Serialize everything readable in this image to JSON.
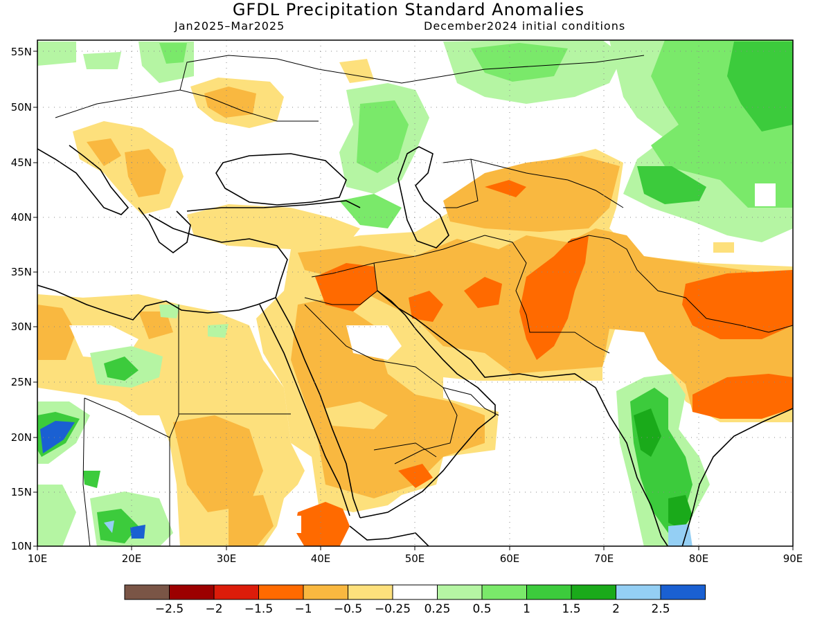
{
  "title": "GFDL Precipitation Standard Anomalies",
  "subtitle_left": "Jan2025–Mar2025",
  "subtitle_right": "December2024 initial conditions",
  "map": {
    "lat_labels": [
      "55N",
      "50N",
      "45N",
      "40N",
      "35N",
      "30N",
      "25N",
      "20N",
      "15N",
      "10N"
    ],
    "lon_labels": [
      "10E",
      "20E",
      "30E",
      "40E",
      "50E",
      "60E",
      "70E",
      "80E",
      "90E"
    ],
    "grid_lines": "dotted"
  },
  "colorbar": {
    "colors": [
      "#7a5546",
      "#9c0000",
      "#dc1c0a",
      "#ff6a00",
      "#f9b840",
      "#fde07c",
      "#ffffff",
      "#b5f5a3",
      "#7ae96a",
      "#3ccb3c",
      "#1aaa1a",
      "#94cff4",
      "#1a60d2"
    ],
    "labels": [
      "−2.5",
      "−2",
      "−1.5",
      "−1",
      "−0.5",
      "−0.25",
      "0.25",
      "0.5",
      "1",
      "1.5",
      "2",
      "2.5"
    ]
  }
}
